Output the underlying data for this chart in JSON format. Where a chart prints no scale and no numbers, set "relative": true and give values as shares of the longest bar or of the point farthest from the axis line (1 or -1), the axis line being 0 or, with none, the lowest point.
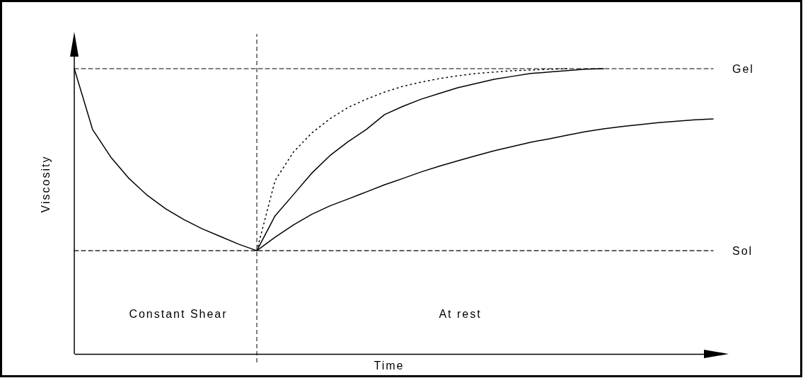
{
  "chart_data": {
    "type": "line",
    "relative": true,
    "xlabel": "Time",
    "ylabel": "Viscosity",
    "categories": [
      null,
      null,
      null,
      null,
      null,
      null,
      null,
      null,
      null,
      null,
      null,
      null,
      null,
      null,
      null,
      null,
      null,
      null,
      null,
      null,
      null,
      null,
      null,
      null,
      null,
      null,
      null,
      null,
      null,
      null,
      null,
      null,
      null,
      null,
      null,
      null
    ],
    "series": [
      {
        "name": "Gel",
        "color": "#000000",
        "line_style": "dashed",
        "values": [
          1.0,
          1.0,
          1.0,
          1.0,
          1.0,
          1.0,
          1.0,
          1.0,
          1.0,
          1.0,
          1.0,
          1.0,
          1.0,
          1.0,
          1.0,
          1.0,
          1.0,
          1.0,
          1.0,
          1.0,
          1.0,
          1.0,
          1.0,
          1.0,
          1.0,
          1.0,
          1.0,
          1.0,
          1.0,
          1.0,
          1.0,
          1.0,
          1.0,
          1.0,
          1.0,
          1.0
        ]
      },
      {
        "name": "Sol",
        "color": "#000000",
        "line_style": "dashed",
        "values": [
          0.362,
          0.362,
          0.362,
          0.362,
          0.362,
          0.362,
          0.362,
          0.362,
          0.362,
          0.362,
          0.362,
          0.362,
          0.362,
          0.362,
          0.362,
          0.362,
          0.362,
          0.362,
          0.362,
          0.362,
          0.362,
          0.362,
          0.362,
          0.362,
          0.362,
          0.362,
          0.362,
          0.362,
          0.362,
          0.362,
          0.362,
          0.362,
          0.362,
          0.362,
          0.362,
          0.362
        ]
      },
      {
        "color": "#000000",
        "line_style": "solid",
        "values": [
          1.0,
          0.787,
          0.69,
          0.615,
          0.556,
          0.509,
          0.471,
          0.439,
          0.412,
          0.385,
          0.362,
          null,
          null,
          null,
          null,
          null,
          null,
          null,
          null,
          null,
          null,
          null,
          null,
          null,
          null,
          null,
          null,
          null,
          null,
          null,
          null,
          null,
          null,
          null,
          null,
          null
        ]
      },
      {
        "color": "#000000",
        "line_style": "dotted",
        "values": [
          null,
          null,
          null,
          null,
          null,
          null,
          null,
          null,
          null,
          null,
          0.362,
          0.608,
          0.707,
          0.774,
          0.824,
          0.864,
          0.893,
          0.918,
          0.938,
          0.953,
          0.965,
          0.975,
          0.983,
          0.988,
          0.993,
          0.995,
          0.998,
          1.0,
          null,
          null,
          null,
          null,
          null,
          null,
          null,
          null
        ]
      },
      {
        "color": "#000000",
        "line_style": "solid",
        "values": [
          null,
          null,
          null,
          null,
          null,
          null,
          null,
          null,
          null,
          null,
          0.362,
          0.484,
          0.558,
          0.633,
          0.695,
          0.744,
          0.787,
          0.839,
          0.868,
          0.893,
          0.913,
          0.933,
          0.948,
          0.963,
          0.973,
          0.983,
          0.988,
          0.993,
          0.998,
          1.0,
          null,
          null,
          null,
          null,
          null,
          null
        ]
      },
      {
        "color": "#000000",
        "line_style": "solid",
        "values": [
          null,
          null,
          null,
          null,
          null,
          null,
          null,
          null,
          null,
          null,
          0.362,
          0.409,
          0.452,
          0.489,
          0.519,
          0.543,
          0.568,
          0.593,
          0.615,
          0.638,
          0.658,
          0.677,
          0.695,
          0.712,
          0.727,
          0.742,
          0.754,
          0.767,
          0.779,
          0.789,
          0.797,
          0.804,
          0.811,
          0.816,
          0.821,
          0.824
        ]
      }
    ],
    "annotations": [
      "Constant Shear",
      "At rest"
    ],
    "marker": "none"
  }
}
